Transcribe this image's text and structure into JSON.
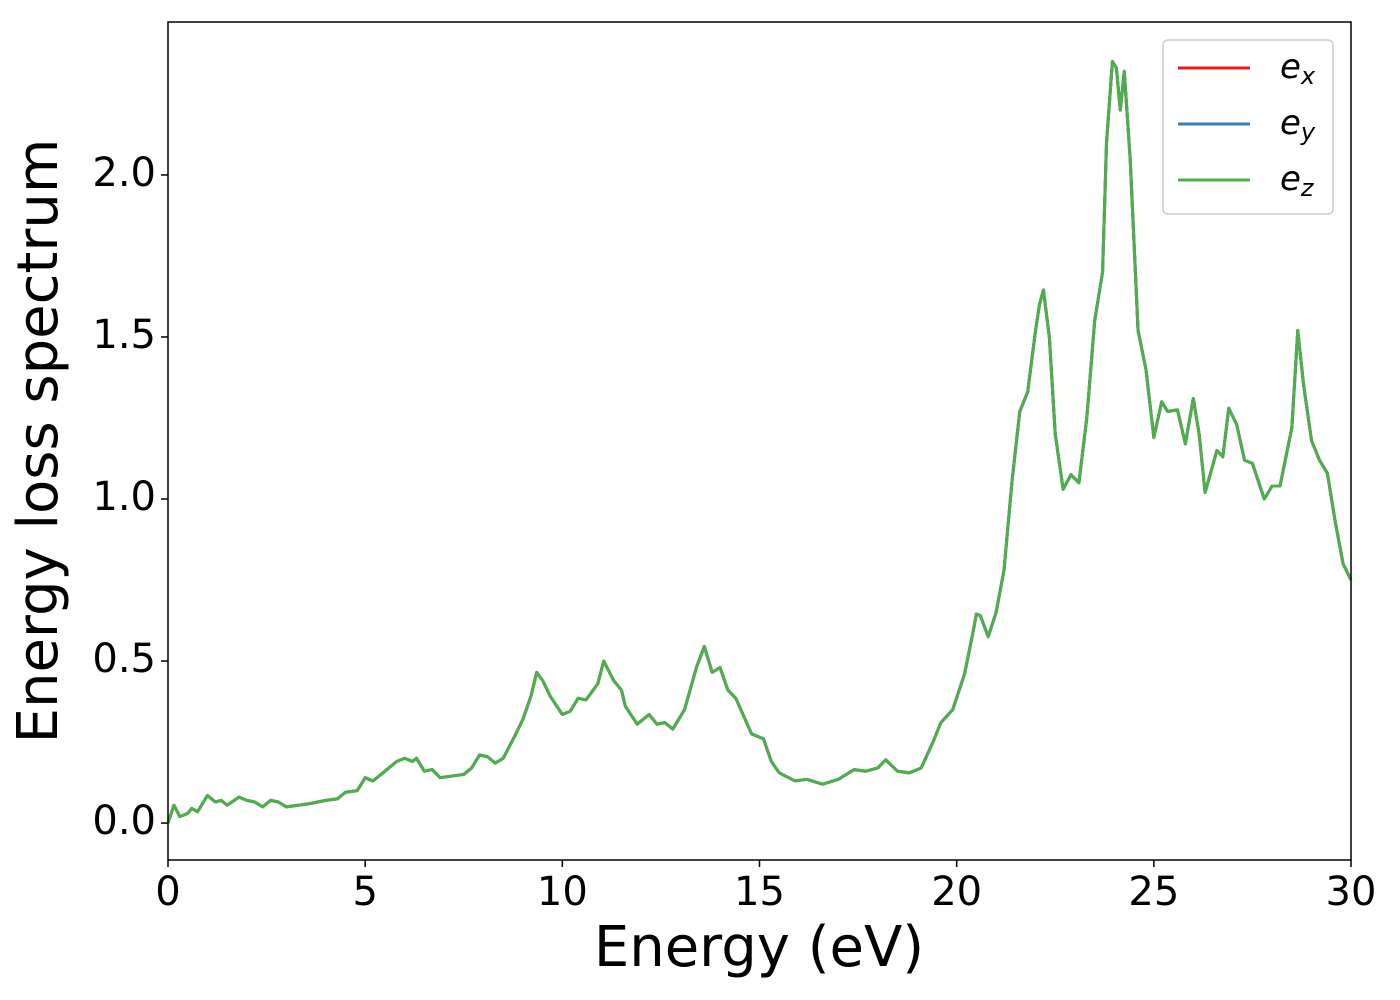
{
  "chart_data": {
    "type": "line",
    "xlabel": "Energy (eV)",
    "ylabel": "Energy loss spectrum",
    "x": [
      0,
      0.15,
      0.3,
      0.5,
      0.6,
      0.75,
      1.0,
      1.2,
      1.35,
      1.5,
      1.8,
      2.0,
      2.2,
      2.4,
      2.6,
      2.8,
      3.0,
      3.3,
      3.6,
      4.0,
      4.3,
      4.5,
      4.8,
      5.0,
      5.2,
      5.5,
      5.8,
      6.0,
      6.2,
      6.3,
      6.5,
      6.7,
      6.9,
      7.2,
      7.5,
      7.7,
      7.9,
      8.1,
      8.3,
      8.5,
      8.8,
      9.0,
      9.2,
      9.35,
      9.5,
      9.7,
      10.0,
      10.2,
      10.4,
      10.6,
      10.9,
      11.05,
      11.3,
      11.5,
      11.6,
      11.9,
      12.2,
      12.4,
      12.6,
      12.8,
      13.1,
      13.4,
      13.6,
      13.8,
      14.0,
      14.2,
      14.4,
      14.6,
      14.8,
      15.1,
      15.3,
      15.5,
      15.9,
      16.2,
      16.6,
      17.0,
      17.4,
      17.7,
      18.0,
      18.2,
      18.5,
      18.8,
      19.1,
      19.4,
      19.6,
      19.9,
      20.2,
      20.4,
      20.5,
      20.6,
      20.8,
      21.0,
      21.2,
      21.4,
      21.6,
      21.8,
      22.0,
      22.1,
      22.2,
      22.35,
      22.5,
      22.7,
      22.9,
      23.1,
      23.3,
      23.5,
      23.7,
      23.8,
      23.95,
      24.05,
      24.15,
      24.25,
      24.4,
      24.6,
      24.8,
      25.0,
      25.2,
      25.35,
      25.6,
      25.8,
      26.0,
      26.15,
      26.3,
      26.6,
      26.75,
      26.9,
      27.1,
      27.3,
      27.5,
      27.8,
      28.0,
      28.2,
      28.5,
      28.65,
      28.8,
      29.0,
      29.2,
      29.4,
      29.6,
      29.8,
      30.0
    ],
    "series": [
      {
        "name": "ex",
        "color": "#e41a1c",
        "values": [
          0.0,
          0.055,
          0.02,
          0.03,
          0.045,
          0.035,
          0.085,
          0.065,
          0.07,
          0.055,
          0.08,
          0.07,
          0.065,
          0.05,
          0.07,
          0.065,
          0.05,
          0.055,
          0.06,
          0.07,
          0.075,
          0.095,
          0.1,
          0.14,
          0.13,
          0.16,
          0.19,
          0.2,
          0.19,
          0.2,
          0.16,
          0.165,
          0.14,
          0.145,
          0.15,
          0.17,
          0.21,
          0.205,
          0.185,
          0.2,
          0.27,
          0.32,
          0.39,
          0.465,
          0.44,
          0.39,
          0.335,
          0.345,
          0.385,
          0.38,
          0.43,
          0.5,
          0.44,
          0.41,
          0.36,
          0.305,
          0.335,
          0.305,
          0.31,
          0.29,
          0.35,
          0.48,
          0.545,
          0.465,
          0.48,
          0.41,
          0.385,
          0.33,
          0.275,
          0.26,
          0.19,
          0.155,
          0.13,
          0.135,
          0.12,
          0.135,
          0.165,
          0.16,
          0.17,
          0.195,
          0.16,
          0.155,
          0.17,
          0.25,
          0.31,
          0.35,
          0.46,
          0.58,
          0.645,
          0.64,
          0.575,
          0.65,
          0.78,
          1.05,
          1.27,
          1.33,
          1.52,
          1.6,
          1.645,
          1.5,
          1.2,
          1.03,
          1.075,
          1.05,
          1.25,
          1.55,
          1.7,
          2.1,
          2.35,
          2.33,
          2.2,
          2.32,
          2.05,
          1.52,
          1.4,
          1.19,
          1.3,
          1.27,
          1.275,
          1.17,
          1.31,
          1.2,
          1.02,
          1.15,
          1.13,
          1.28,
          1.23,
          1.12,
          1.11,
          1.0,
          1.04,
          1.04,
          1.22,
          1.52,
          1.35,
          1.18,
          1.12,
          1.08,
          0.93,
          0.8,
          0.75
        ]
      },
      {
        "name": "ey",
        "color": "#377eb8",
        "values": [
          0.0,
          0.055,
          0.02,
          0.03,
          0.045,
          0.035,
          0.085,
          0.065,
          0.07,
          0.055,
          0.08,
          0.07,
          0.065,
          0.05,
          0.07,
          0.065,
          0.05,
          0.055,
          0.06,
          0.07,
          0.075,
          0.095,
          0.1,
          0.14,
          0.13,
          0.16,
          0.19,
          0.2,
          0.19,
          0.2,
          0.16,
          0.165,
          0.14,
          0.145,
          0.15,
          0.17,
          0.21,
          0.205,
          0.185,
          0.2,
          0.27,
          0.32,
          0.39,
          0.465,
          0.44,
          0.39,
          0.335,
          0.345,
          0.385,
          0.38,
          0.43,
          0.5,
          0.44,
          0.41,
          0.36,
          0.305,
          0.335,
          0.305,
          0.31,
          0.29,
          0.35,
          0.48,
          0.545,
          0.465,
          0.48,
          0.41,
          0.385,
          0.33,
          0.275,
          0.26,
          0.19,
          0.155,
          0.13,
          0.135,
          0.12,
          0.135,
          0.165,
          0.16,
          0.17,
          0.195,
          0.16,
          0.155,
          0.17,
          0.25,
          0.31,
          0.35,
          0.46,
          0.58,
          0.645,
          0.64,
          0.575,
          0.65,
          0.78,
          1.05,
          1.27,
          1.33,
          1.52,
          1.6,
          1.645,
          1.5,
          1.2,
          1.03,
          1.075,
          1.05,
          1.25,
          1.55,
          1.7,
          2.1,
          2.35,
          2.33,
          2.2,
          2.32,
          2.05,
          1.52,
          1.4,
          1.19,
          1.3,
          1.27,
          1.275,
          1.17,
          1.31,
          1.2,
          1.02,
          1.15,
          1.13,
          1.28,
          1.23,
          1.12,
          1.11,
          1.0,
          1.04,
          1.04,
          1.22,
          1.52,
          1.35,
          1.18,
          1.12,
          1.08,
          0.93,
          0.8,
          0.75
        ]
      },
      {
        "name": "ez",
        "color": "#4daf4a",
        "values": [
          0.0,
          0.055,
          0.02,
          0.03,
          0.045,
          0.035,
          0.085,
          0.065,
          0.07,
          0.055,
          0.08,
          0.07,
          0.065,
          0.05,
          0.07,
          0.065,
          0.05,
          0.055,
          0.06,
          0.07,
          0.075,
          0.095,
          0.1,
          0.14,
          0.13,
          0.16,
          0.19,
          0.2,
          0.19,
          0.2,
          0.16,
          0.165,
          0.14,
          0.145,
          0.15,
          0.17,
          0.21,
          0.205,
          0.185,
          0.2,
          0.27,
          0.32,
          0.39,
          0.465,
          0.44,
          0.39,
          0.335,
          0.345,
          0.385,
          0.38,
          0.43,
          0.5,
          0.44,
          0.41,
          0.36,
          0.305,
          0.335,
          0.305,
          0.31,
          0.29,
          0.35,
          0.48,
          0.545,
          0.465,
          0.48,
          0.41,
          0.385,
          0.33,
          0.275,
          0.26,
          0.19,
          0.155,
          0.13,
          0.135,
          0.12,
          0.135,
          0.165,
          0.16,
          0.17,
          0.195,
          0.16,
          0.155,
          0.17,
          0.25,
          0.31,
          0.35,
          0.46,
          0.58,
          0.645,
          0.64,
          0.575,
          0.65,
          0.78,
          1.05,
          1.27,
          1.33,
          1.52,
          1.6,
          1.645,
          1.5,
          1.2,
          1.03,
          1.075,
          1.05,
          1.25,
          1.55,
          1.7,
          2.1,
          2.35,
          2.33,
          2.2,
          2.32,
          2.05,
          1.52,
          1.4,
          1.19,
          1.3,
          1.27,
          1.275,
          1.17,
          1.31,
          1.2,
          1.02,
          1.15,
          1.13,
          1.28,
          1.23,
          1.12,
          1.11,
          1.0,
          1.04,
          1.04,
          1.22,
          1.52,
          1.35,
          1.18,
          1.12,
          1.08,
          0.93,
          0.8,
          0.75
        ]
      }
    ],
    "xlim": [
      0,
      30
    ],
    "xticks": [
      0,
      5,
      10,
      15,
      20,
      25,
      30
    ],
    "ylim": [
      -0.114,
      2.472
    ],
    "yticks": [
      {
        "value": 0,
        "label": "0.0"
      },
      0.5,
      {
        "value": 1,
        "label": "1.0"
      },
      1.5,
      {
        "value": 2,
        "label": "2.0"
      }
    ],
    "grid": false,
    "legend": "upper right"
  }
}
